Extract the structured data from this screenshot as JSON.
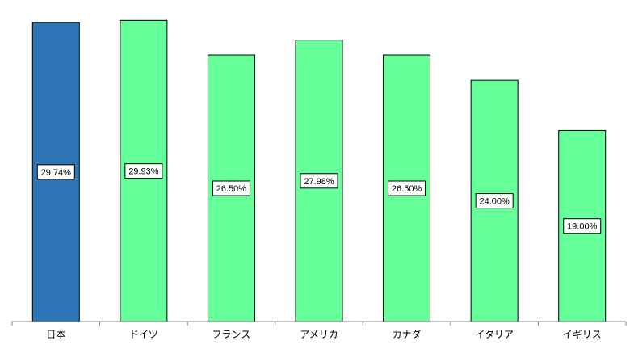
{
  "chart_data": {
    "type": "bar",
    "categories": [
      "日本",
      "ドイツ",
      "フランス",
      "アメリカ",
      "カナダ",
      "イタリア",
      "イギリス"
    ],
    "values": [
      29.74,
      29.93,
      26.5,
      27.98,
      26.5,
      24.0,
      19.0
    ],
    "data_labels": [
      "29.74%",
      "29.93%",
      "26.50%",
      "27.98%",
      "26.50%",
      "24.00%",
      "19.00%"
    ],
    "ylim": [
      0,
      31
    ],
    "grid": false,
    "legend": "none",
    "colors": {
      "highlight": "#2e75b6",
      "default": "#66ff99",
      "outline": "#000000"
    },
    "highlight_index": 0
  }
}
